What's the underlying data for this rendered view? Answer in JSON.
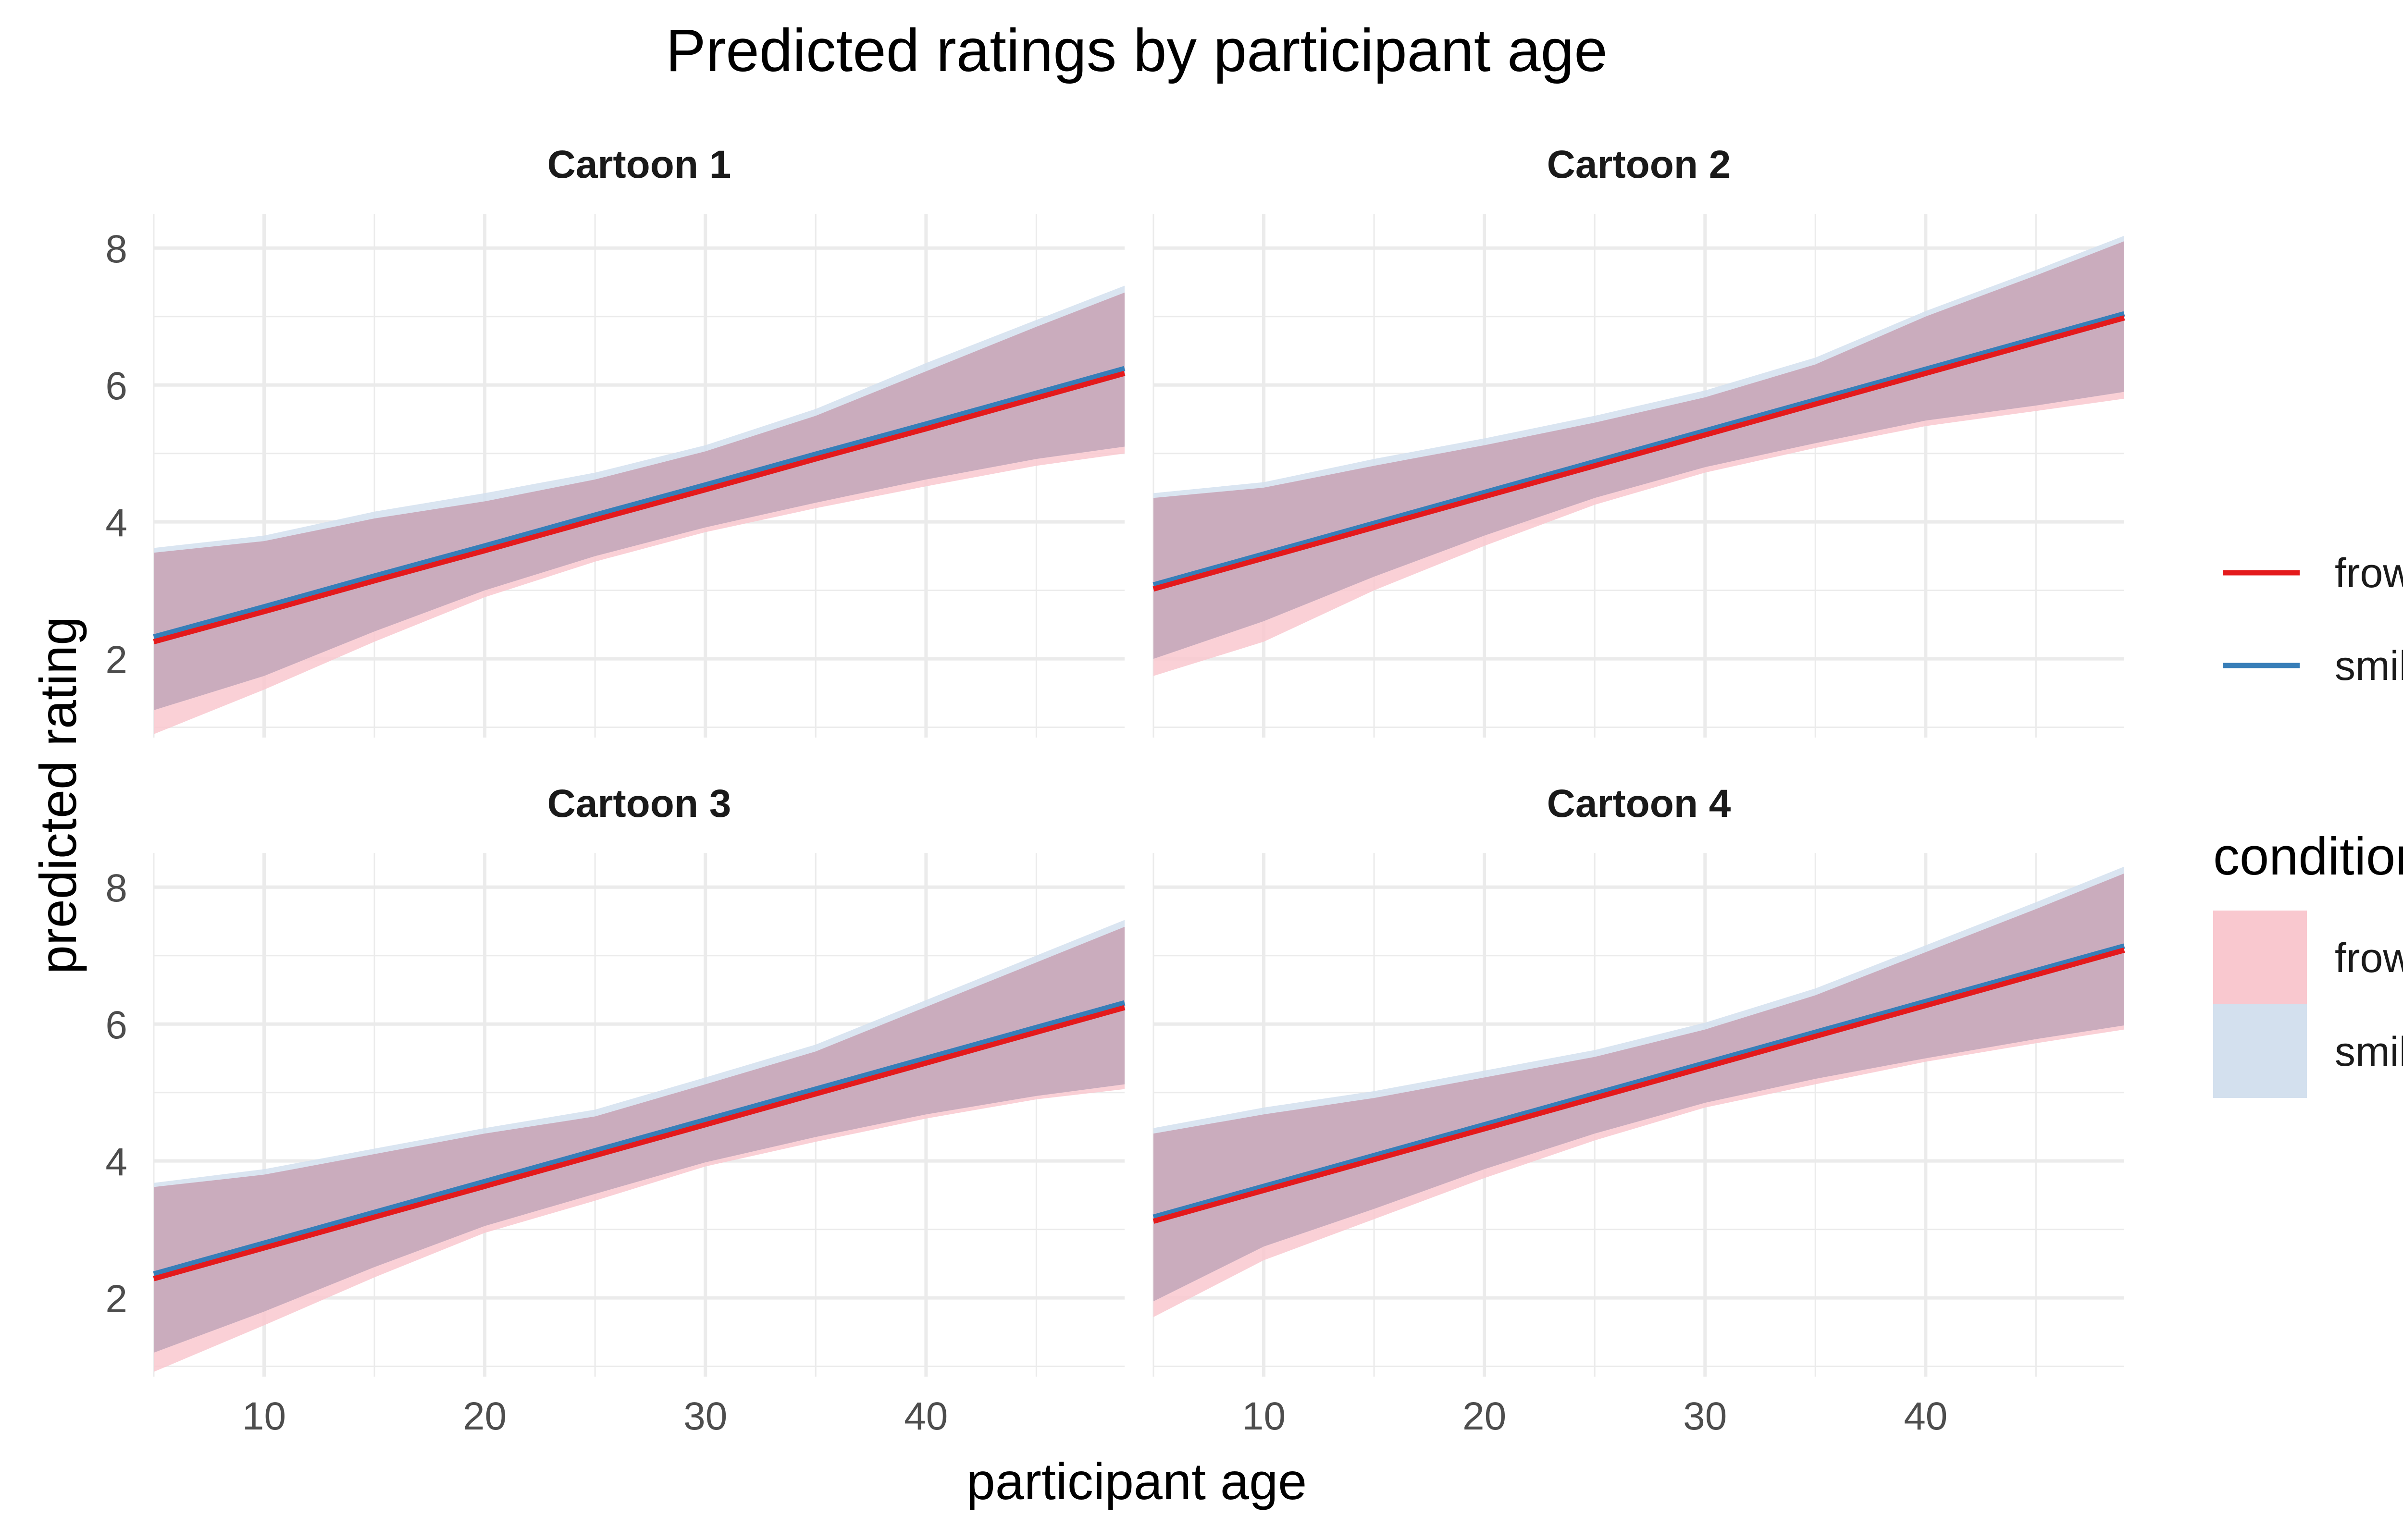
{
  "chart_data": {
    "type": "line",
    "title": "Predicted ratings by participant age",
    "xlabel": "participant age",
    "ylabel": "predicted rating",
    "xlim": [
      5,
      49
    ],
    "ylim": [
      0.85,
      8.5
    ],
    "x_ticks": [
      10,
      20,
      30,
      40
    ],
    "y_ticks": [
      2,
      4,
      6,
      8
    ],
    "grid": true,
    "legend": {
      "position": "right",
      "line_title": "",
      "fill_title": "condition",
      "entries": [
        "frown",
        "smile"
      ]
    },
    "colors": {
      "frown_line": "#e41a1c",
      "smile_line": "#377eb8",
      "frown_fill": "#f9c8cf",
      "smile_fill": "#d3e0ee",
      "overlap_fill": "#c9a9bb",
      "grid": "#ebebeb"
    },
    "x_points": [
      5,
      10,
      15,
      20,
      25,
      30,
      35,
      40,
      45,
      49
    ],
    "panels": [
      {
        "title": "Cartoon 1",
        "series": [
          {
            "name": "frown",
            "values": [
              2.25,
              2.69,
              3.14,
              3.58,
              4.03,
              4.47,
              4.92,
              5.36,
              5.81,
              6.17
            ],
            "lower": [
              0.9,
              1.55,
              2.25,
              2.9,
              3.42,
              3.85,
              4.2,
              4.52,
              4.82,
              5.0
            ],
            "upper": [
              3.55,
              3.72,
              4.05,
              4.3,
              4.62,
              5.03,
              5.55,
              6.2,
              6.85,
              7.35
            ]
          },
          {
            "name": "smile",
            "values": [
              2.32,
              2.76,
              3.21,
              3.65,
              4.1,
              4.54,
              4.99,
              5.43,
              5.88,
              6.24
            ],
            "lower": [
              1.25,
              1.75,
              2.4,
              3.0,
              3.5,
              3.92,
              4.28,
              4.62,
              4.92,
              5.1
            ],
            "upper": [
              3.62,
              3.8,
              4.15,
              4.42,
              4.72,
              5.12,
              5.65,
              6.32,
              6.95,
              7.45
            ]
          }
        ]
      },
      {
        "title": "Cartoon 2",
        "series": [
          {
            "name": "frown",
            "values": [
              3.02,
              3.47,
              3.92,
              4.37,
              4.82,
              5.27,
              5.72,
              6.17,
              6.62,
              6.98
            ],
            "lower": [
              1.75,
              2.25,
              3.0,
              3.65,
              4.25,
              4.72,
              5.08,
              5.4,
              5.62,
              5.8
            ],
            "upper": [
              4.35,
              4.5,
              4.82,
              5.12,
              5.45,
              5.82,
              6.3,
              7.0,
              7.6,
              8.1
            ]
          },
          {
            "name": "smile",
            "values": [
              3.08,
              3.53,
              3.98,
              4.43,
              4.88,
              5.33,
              5.78,
              6.23,
              6.68,
              7.04
            ],
            "lower": [
              2.0,
              2.55,
              3.2,
              3.8,
              4.35,
              4.8,
              5.15,
              5.48,
              5.7,
              5.9
            ],
            "upper": [
              4.42,
              4.58,
              4.92,
              5.22,
              5.55,
              5.92,
              6.4,
              7.08,
              7.68,
              8.18
            ]
          }
        ]
      },
      {
        "title": "Cartoon 3",
        "series": [
          {
            "name": "frown",
            "values": [
              2.28,
              2.73,
              3.18,
              3.63,
              4.08,
              4.53,
              4.98,
              5.43,
              5.88,
              6.24
            ],
            "lower": [
              0.92,
              1.6,
              2.3,
              2.95,
              3.42,
              3.92,
              4.28,
              4.62,
              4.9,
              5.05
            ],
            "upper": [
              3.62,
              3.8,
              4.1,
              4.4,
              4.65,
              5.12,
              5.6,
              6.25,
              6.9,
              7.42
            ]
          },
          {
            "name": "smile",
            "values": [
              2.35,
              2.8,
              3.25,
              3.7,
              4.15,
              4.6,
              5.05,
              5.5,
              5.95,
              6.31
            ],
            "lower": [
              1.2,
              1.8,
              2.45,
              3.05,
              3.52,
              3.98,
              4.35,
              4.68,
              4.95,
              5.12
            ],
            "upper": [
              3.68,
              3.88,
              4.18,
              4.48,
              4.75,
              5.22,
              5.7,
              6.35,
              7.0,
              7.52
            ]
          }
        ]
      },
      {
        "title": "Cartoon 4",
        "series": [
          {
            "name": "frown",
            "values": [
              3.12,
              3.57,
              4.02,
              4.47,
              4.92,
              5.37,
              5.82,
              6.27,
              6.72,
              7.08
            ],
            "lower": [
              1.72,
              2.55,
              3.15,
              3.75,
              4.3,
              4.78,
              5.12,
              5.45,
              5.72,
              5.92
            ],
            "upper": [
              4.4,
              4.68,
              4.92,
              5.22,
              5.52,
              5.92,
              6.42,
              7.05,
              7.68,
              8.2
            ]
          },
          {
            "name": "smile",
            "values": [
              3.18,
              3.63,
              4.08,
              4.53,
              4.98,
              5.43,
              5.88,
              6.33,
              6.78,
              7.14
            ],
            "lower": [
              1.95,
              2.75,
              3.3,
              3.88,
              4.4,
              4.85,
              5.2,
              5.5,
              5.78,
              5.98
            ],
            "upper": [
              4.48,
              4.78,
              5.02,
              5.32,
              5.62,
              6.02,
              6.52,
              7.15,
              7.78,
              8.3
            ]
          }
        ]
      }
    ]
  }
}
